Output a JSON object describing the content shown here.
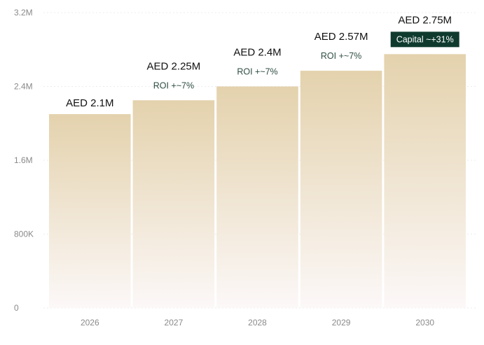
{
  "chart_data": {
    "type": "bar",
    "categories": [
      "2026",
      "2027",
      "2028",
      "2029",
      "2030"
    ],
    "values": [
      2100000,
      2250000,
      2400000,
      2570000,
      2750000
    ],
    "value_labels": [
      "AED 2.1M",
      "AED 2.25M",
      "AED 2.4M",
      "AED 2.57M",
      "AED 2.75M"
    ],
    "annotations": [
      "",
      "ROI +~7%",
      "ROI +~7%",
      "ROI +~7%",
      "Capital ~+31%"
    ],
    "highlight_last_annotation": true,
    "y_ticks": [
      0,
      800000,
      1600000,
      2400000,
      3200000
    ],
    "y_tick_labels": [
      "0",
      "800K",
      "1.6M",
      "2.4M",
      "3.2M"
    ],
    "ylim": [
      0,
      3200000
    ],
    "title": "",
    "xlabel": "",
    "ylabel": "",
    "grid": true,
    "colors": {
      "bar_top": "#e4d2ad",
      "bar_bottom": "#fcf8f8",
      "grid": "#ececec",
      "tick_text": "#8a8a8a",
      "value_text": "#111111",
      "annotation_text": "#2f4e42",
      "highlight_bg": "#0f3b2e",
      "highlight_text": "#ffffff"
    }
  }
}
